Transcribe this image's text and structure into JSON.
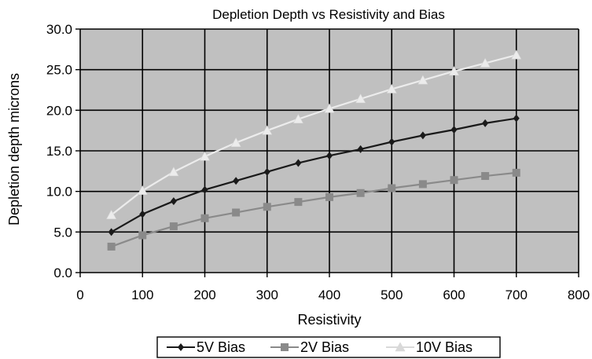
{
  "chart_data": {
    "type": "line",
    "title": "Depletion Depth vs Resistivity and Bias",
    "xlabel": "Resistivity",
    "ylabel": "Depletion depth microns",
    "xlim": [
      0,
      800
    ],
    "ylim": [
      0,
      30
    ],
    "x_ticks": [
      "0",
      "100",
      "200",
      "300",
      "400",
      "500",
      "600",
      "700",
      "800"
    ],
    "y_ticks": [
      "0.0",
      "5.0",
      "10.0",
      "15.0",
      "20.0",
      "25.0",
      "30.0"
    ],
    "grid": true,
    "plot_background": "#c0c0c0",
    "legend_position": "bottom",
    "x": [
      50,
      100,
      150,
      200,
      250,
      300,
      350,
      400,
      450,
      500,
      550,
      600,
      650,
      700
    ],
    "series": [
      {
        "name": "5V Bias",
        "marker": "diamond",
        "color": "#1a1a1a",
        "values": [
          5.0,
          7.2,
          8.8,
          10.2,
          11.3,
          12.4,
          13.5,
          14.4,
          15.2,
          16.1,
          16.9,
          17.6,
          18.4,
          19.0
        ]
      },
      {
        "name": "2V Bias",
        "marker": "square",
        "color": "#8a8a8a",
        "values": [
          3.2,
          4.6,
          5.7,
          6.7,
          7.4,
          8.1,
          8.7,
          9.3,
          9.8,
          10.4,
          10.9,
          11.4,
          11.9,
          12.3
        ]
      },
      {
        "name": "10V Bias",
        "marker": "triangle",
        "color": "#ececec",
        "values": [
          7.1,
          10.1,
          12.4,
          14.3,
          16.0,
          17.5,
          18.9,
          20.2,
          21.4,
          22.6,
          23.7,
          24.8,
          25.8,
          26.8
        ]
      }
    ]
  }
}
